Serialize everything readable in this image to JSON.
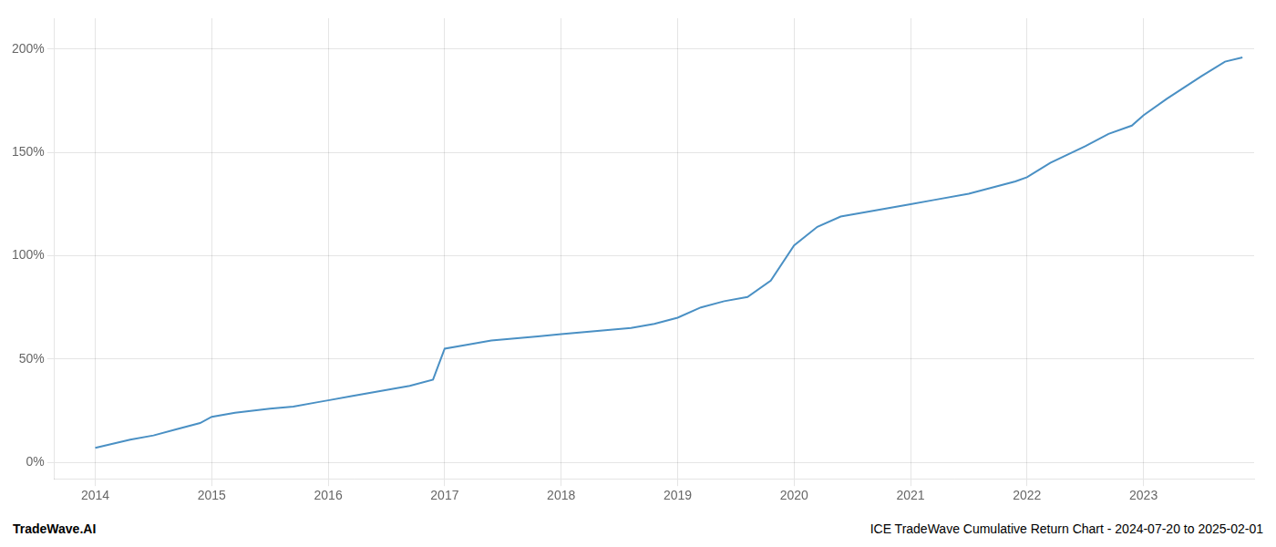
{
  "chart_data": {
    "type": "line",
    "x": [
      2014.0,
      2014.15,
      2014.3,
      2014.5,
      2014.7,
      2014.9,
      2015.0,
      2015.2,
      2015.5,
      2015.7,
      2015.9,
      2016.0,
      2016.2,
      2016.5,
      2016.7,
      2016.9,
      2017.0,
      2017.2,
      2017.4,
      2017.6,
      2017.8,
      2018.0,
      2018.2,
      2018.4,
      2018.6,
      2018.8,
      2019.0,
      2019.2,
      2019.4,
      2019.6,
      2019.8,
      2020.0,
      2020.2,
      2020.4,
      2020.6,
      2020.8,
      2021.0,
      2021.2,
      2021.5,
      2021.7,
      2021.9,
      2022.0,
      2022.2,
      2022.5,
      2022.7,
      2022.9,
      2023.0,
      2023.2,
      2023.5,
      2023.7,
      2023.85
    ],
    "values": [
      7,
      9,
      11,
      13,
      16,
      19,
      22,
      24,
      26,
      27,
      29,
      30,
      32,
      35,
      37,
      40,
      55,
      57,
      59,
      60,
      61,
      62,
      63,
      64,
      65,
      67,
      70,
      75,
      78,
      80,
      88,
      105,
      114,
      119,
      121,
      123,
      125,
      127,
      130,
      133,
      136,
      138,
      145,
      153,
      159,
      163,
      168,
      176,
      187,
      194,
      196
    ],
    "color": "#4a90c4",
    "xlim": [
      2013.65,
      2023.95
    ],
    "xticks": [
      2014,
      2015,
      2016,
      2017,
      2018,
      2019,
      2020,
      2021,
      2022,
      2023
    ],
    "ylim": [
      -8,
      215
    ],
    "yticks": [
      {
        "value": 0,
        "label": "0%"
      },
      {
        "value": 50,
        "label": "50%"
      },
      {
        "value": 100,
        "label": "100%"
      },
      {
        "value": 150,
        "label": "150%"
      },
      {
        "value": 200,
        "label": "200%"
      }
    ],
    "grid": true,
    "annotations": [
      "TradeWave.AI",
      "ICE TradeWave Cumulative Return Chart - 2024-07-20 to 2025-02-01"
    ]
  }
}
